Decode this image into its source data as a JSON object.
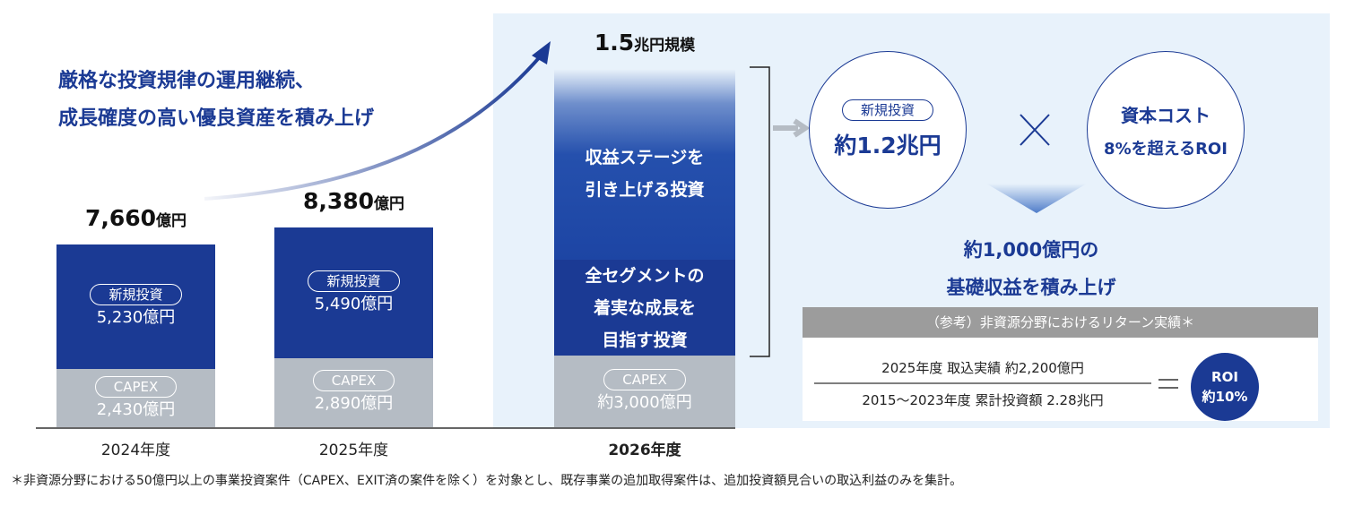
{
  "chart_data": {
    "type": "stacked_bar",
    "annotation": "厳格な投資規律の運用継続、\n成長確度の高い優良資産を積み上げ",
    "categories": [
      "2024年度",
      "2025年度",
      "2026年度"
    ],
    "series": [
      {
        "name": "CAPEX",
        "color": "#b5bcc4",
        "values": [
          2430,
          2890,
          3000
        ],
        "value_labels": [
          "2,430億円",
          "2,890億円",
          "約3,000億円"
        ]
      },
      {
        "name": "新規投資",
        "color": "#1b3a94",
        "values": [
          5230,
          5490,
          null
        ],
        "value_labels": [
          "5,230億円",
          "5,490億円",
          null
        ]
      },
      {
        "name": "全セグメントの\n着実な成長を\n目指す投資",
        "color": "#1b3a94",
        "values": [
          null,
          null,
          4000
        ]
      },
      {
        "name": "収益ステージを\n引き上げる投資",
        "color": "linear-gradient(#e9f2fb 0%, #6f8fcc 18%, #2550ad 45%, #1d45a4 100%)",
        "values": [
          null,
          null,
          8000
        ]
      }
    ],
    "totals": [
      {
        "value": 7660,
        "label": "7,660",
        "unit": "億円"
      },
      {
        "value": 8380,
        "label": "8,380",
        "unit": "億円"
      },
      {
        "value": 15000,
        "label": "1.5",
        "unit": "兆円規模"
      }
    ],
    "breakdown": {
      "investment": {
        "badge": "新規投資",
        "text": "約1.2兆円"
      },
      "cost": {
        "line1": "資本コスト",
        "line2": "8%を超えるROI"
      },
      "result": "約1,000億円の\n基礎収益を積み上げ"
    },
    "reference": {
      "title": "（参考）非資源分野におけるリターン実績＊",
      "numerator": "2025年度 取込実績 約2,200億円",
      "denominator": "2015～2023年度 累計投資額 2.28兆円",
      "roi": "ROI\n約10%"
    },
    "footnote": "＊非資源分野における50億円以上の事業投資案件（CAPEX、EXIT済の案件を除く）を対象とし、既存事業の追加取得案件は、追加投資額見合いの取込利益のみを集計。"
  }
}
